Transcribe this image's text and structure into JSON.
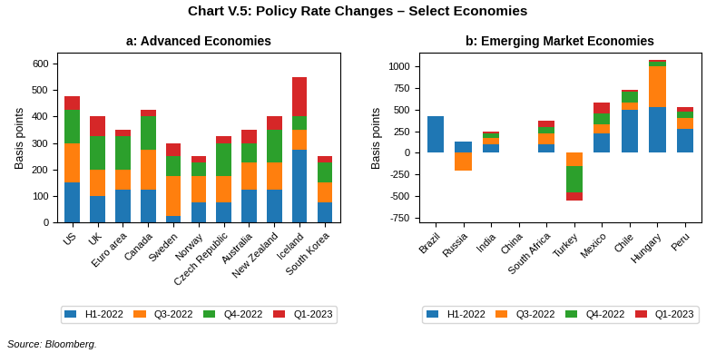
{
  "title": "Chart V.5: Policy Rate Changes – Select Economies",
  "annotations": [
    "Source: Bloomberg."
  ],
  "chart_data": [
    {
      "type": "bar",
      "stacked": true,
      "title": "a: Advanced Economies",
      "ylabel": "Basis points",
      "categories": [
        "US",
        "UK",
        "Euro area",
        "Canada",
        "Sweden",
        "Norway",
        "Czech Republic",
        "Australia",
        "New Zealand",
        "Iceland",
        "South Korea"
      ],
      "series": [
        {
          "name": "H1-2022",
          "values": [
            150,
            100,
            125,
            125,
            25,
            75,
            75,
            125,
            125,
            275,
            75
          ]
        },
        {
          "name": "Q3-2022",
          "values": [
            150,
            100,
            75,
            150,
            150,
            100,
            100,
            100,
            100,
            75,
            75
          ]
        },
        {
          "name": "Q4-2022",
          "values": [
            125,
            125,
            125,
            125,
            75,
            50,
            125,
            75,
            125,
            50,
            75
          ]
        },
        {
          "name": "Q1-2023",
          "values": [
            50,
            75,
            25,
            25,
            50,
            25,
            25,
            50,
            50,
            150,
            25
          ]
        }
      ],
      "ylim": [
        0,
        640
      ],
      "yticks": [
        0,
        100,
        200,
        300,
        400,
        500,
        600
      ],
      "legend": "lower center"
    },
    {
      "type": "bar",
      "stacked": true,
      "title": "b: Emerging Market Economies",
      "ylabel": "Basis points",
      "categories": [
        "Brazil",
        "Russia",
        "India",
        "China",
        "South Africa",
        "Turkey",
        "Mexico",
        "Chile",
        "Hungary",
        "Peru"
      ],
      "series": [
        {
          "name": "H1-2022",
          "values": [
            425,
            125,
            100,
            0,
            100,
            0,
            225,
            500,
            525,
            275
          ]
        },
        {
          "name": "Q3-2022",
          "values": [
            0,
            -200,
            75,
            0,
            125,
            -150,
            100,
            75,
            475,
            125
          ]
        },
        {
          "name": "Q4-2022",
          "values": [
            0,
            0,
            50,
            0,
            75,
            -300,
            125,
            125,
            50,
            75
          ]
        },
        {
          "name": "Q1-2023",
          "values": [
            0,
            0,
            25,
            0,
            75,
            -100,
            125,
            25,
            25,
            50
          ]
        }
      ],
      "ylim": [
        -800,
        1150
      ],
      "yticks": [
        -750,
        -500,
        -250,
        0,
        250,
        500,
        750,
        1000
      ],
      "legend": "lower center"
    }
  ]
}
